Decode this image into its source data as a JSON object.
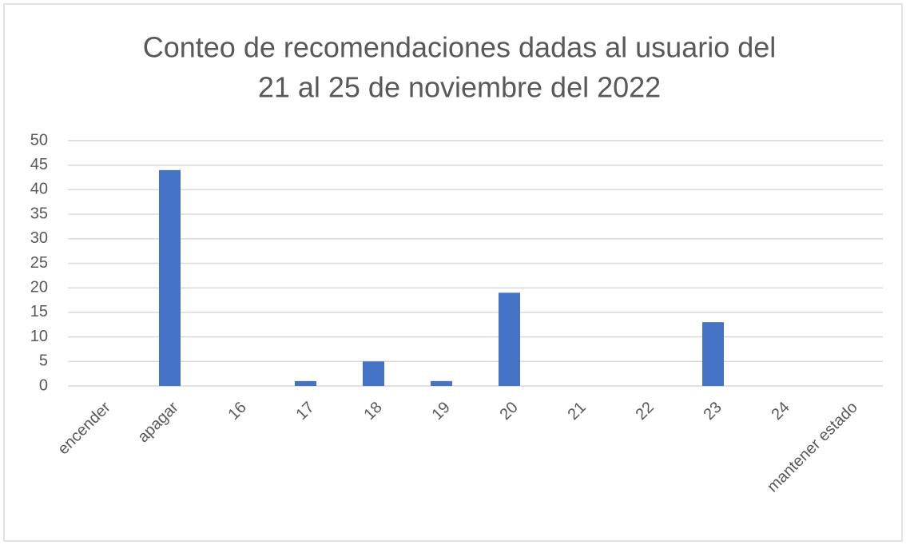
{
  "chart_data": {
    "type": "bar",
    "title": [
      "Conteo de recomendaciones  dadas al usuario del",
      "21 al 25 de noviembre del 2022"
    ],
    "categories": [
      "encender",
      "apagar",
      "16",
      "17",
      "18",
      "19",
      "20",
      "21",
      "22",
      "23",
      "24",
      "mantener estado"
    ],
    "values": [
      0,
      44,
      0,
      1,
      5,
      1,
      19,
      0,
      0,
      13,
      0,
      0
    ],
    "color": "#4472c4",
    "ylim": [
      0,
      50
    ],
    "yticks": [
      0,
      5,
      10,
      15,
      20,
      25,
      30,
      35,
      40,
      45,
      50
    ],
    "grid": true
  }
}
